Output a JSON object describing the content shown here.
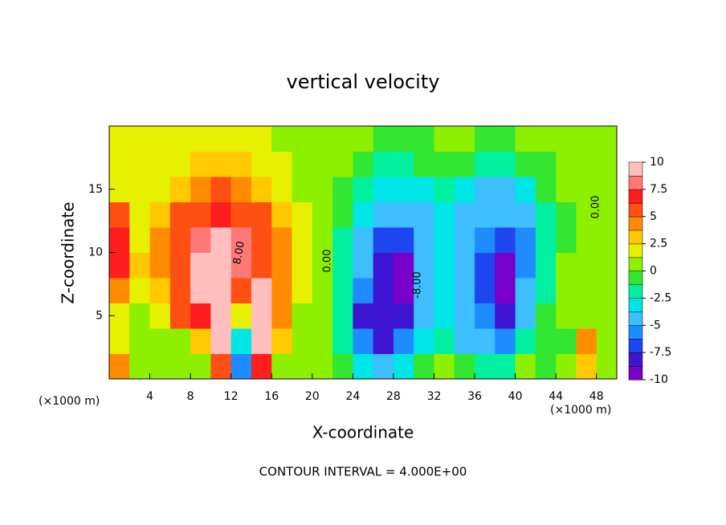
{
  "chart_data": {
    "type": "contour",
    "title": "vertical velocity",
    "xlabel": "X-coordinate",
    "ylabel": "Z-coordinate",
    "x_unit_label": "(×1000 m)",
    "footer": "CONTOUR INTERVAL = 4.000E+00",
    "xlim": [
      0,
      50
    ],
    "ylim": [
      0,
      20
    ],
    "xticks": [
      4,
      8,
      12,
      16,
      20,
      24,
      28,
      32,
      36,
      40,
      44,
      48
    ],
    "yticks": [
      5,
      10,
      15
    ],
    "x": [
      1,
      3,
      5,
      7,
      9,
      11,
      13,
      15,
      17,
      19,
      21,
      23,
      25,
      27,
      29,
      31,
      33,
      35,
      37,
      39,
      41,
      43,
      45,
      47,
      49
    ],
    "z": [
      1,
      3,
      5,
      7,
      9,
      11,
      13,
      15,
      17,
      19
    ],
    "values": [
      [
        4,
        1,
        0,
        1,
        0,
        5,
        -6,
        7,
        1,
        0,
        0,
        -1,
        -3,
        -4,
        -3,
        -1,
        0,
        -1,
        -2,
        -2,
        0,
        -1,
        0,
        3,
        0
      ],
      [
        2,
        1,
        0,
        1,
        3,
        9,
        -3,
        10,
        3,
        1,
        0,
        -2,
        -6,
        -8,
        -6,
        -3,
        -2,
        -4,
        -5,
        -6,
        -2,
        -1,
        -1,
        4,
        1
      ],
      [
        2,
        1,
        2,
        5,
        7,
        10,
        2,
        10,
        4,
        1,
        0,
        -2,
        -8,
        -8,
        -8,
        -4,
        -3,
        -5,
        -6,
        -8,
        -4,
        -1,
        0,
        1,
        1
      ],
      [
        4,
        2,
        3,
        5,
        9,
        10,
        5,
        9,
        4,
        2,
        0,
        -2,
        -6,
        -8,
        -9,
        -4,
        -3,
        -5,
        -7,
        -9,
        -5,
        -2,
        0,
        0,
        1
      ],
      [
        7,
        3,
        4,
        6,
        9,
        10,
        8,
        6,
        4,
        2,
        0,
        -2,
        -5,
        -8,
        -9,
        -5,
        -3,
        -5,
        -7,
        -9,
        -6,
        -2,
        0,
        0,
        1
      ],
      [
        7,
        2,
        4,
        6,
        8,
        9,
        8,
        6,
        4,
        2,
        0,
        -2,
        -4,
        -7,
        -7,
        -5,
        -3,
        -5,
        -6,
        -7,
        -6,
        -2,
        -1,
        0,
        1
      ],
      [
        5,
        2,
        3,
        5,
        6,
        7,
        6,
        5,
        3,
        2,
        0,
        -1,
        -3,
        -5,
        -5,
        -4,
        -3,
        -4,
        -5,
        -5,
        -4,
        -2,
        -1,
        0,
        1
      ],
      [
        2,
        2,
        2,
        3,
        4,
        5,
        4,
        3,
        2,
        1,
        0,
        -1,
        -2,
        -3,
        -3,
        -3,
        -2,
        -3,
        -4,
        -4,
        -3,
        -1,
        0,
        0,
        1
      ],
      [
        2,
        2,
        2,
        2,
        3,
        3,
        3,
        2,
        2,
        1,
        0,
        0,
        -1,
        -2,
        -2,
        -1,
        -1,
        -1,
        -2,
        -2,
        -1,
        -1,
        0,
        0,
        1
      ],
      [
        2,
        2,
        2,
        2,
        2,
        2,
        2,
        2,
        1,
        1,
        0,
        0,
        0,
        -1,
        -1,
        -1,
        0,
        0,
        -1,
        -1,
        0,
        0,
        0,
        0,
        0
      ]
    ],
    "colorbar_lim": [
      -10,
      10
    ],
    "colorbar_ticks": [
      10,
      7.5,
      5,
      2.5,
      0,
      -2.5,
      -5,
      -7.5,
      -10
    ],
    "colors": [
      "#7800c8",
      "#3c14d2",
      "#1e46f0",
      "#1e8cff",
      "#3cbeff",
      "#00e6e6",
      "#00f0a0",
      "#32e632",
      "#8cf000",
      "#e6f000",
      "#ffc800",
      "#ff8c00",
      "#ff5014",
      "#ff1e1e",
      "#ff7878",
      "#ffbebe"
    ],
    "contour_labels": [
      "8.00",
      "0.00",
      "-8.00",
      "0.00"
    ]
  }
}
